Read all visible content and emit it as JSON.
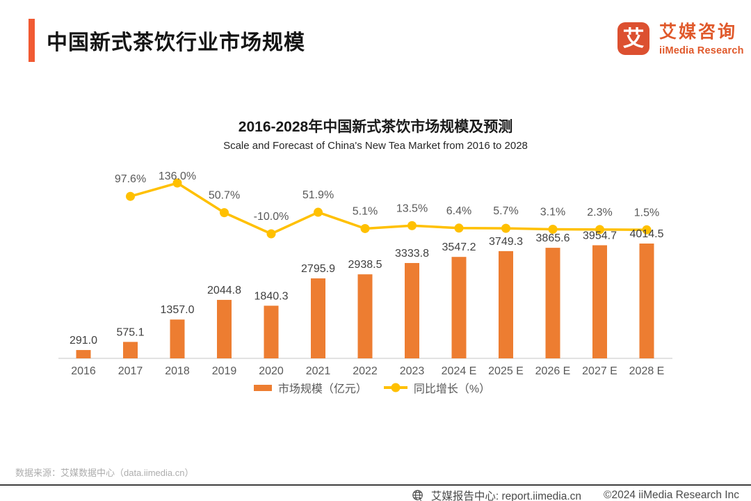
{
  "colors": {
    "brand_accent": "#F15A33",
    "bar_series": "#ED7D31",
    "line_series": "#FFC000"
  },
  "header": {
    "title": "中国新式茶饮行业市场规模",
    "logo": {
      "icon_char": "艾",
      "name_cn": "艾媒咨询",
      "name_en": "iiMedia Research"
    }
  },
  "chart": {
    "title": "2016-2028年中国新式茶饮市场规模及预测",
    "subtitle": "Scale and Forecast of China's New Tea Market from 2016 to 2028",
    "legend": {
      "bar_label": "市场规模（亿元）",
      "line_label": "同比增长（%）"
    }
  },
  "chart_data": {
    "type": "bar+line",
    "title": "2016-2028年中国新式茶饮市场规模及预测",
    "subtitle": "Scale and Forecast of China's New Tea Market from 2016 to 2028",
    "categories": [
      "2016",
      "2017",
      "2018",
      "2019",
      "2020",
      "2021",
      "2022",
      "2023",
      "2024 E",
      "2025 E",
      "2026 E",
      "2027 E",
      "2028 E"
    ],
    "series": [
      {
        "name": "市场规模（亿元）",
        "type": "bar",
        "color": "#ED7D31",
        "values": [
          291.0,
          575.1,
          1357.0,
          2044.8,
          1840.3,
          2795.9,
          2938.5,
          3333.8,
          3547.2,
          3749.3,
          3865.6,
          3954.7,
          4014.5
        ]
      },
      {
        "name": "同比增长（%）",
        "type": "line",
        "color": "#FFC000",
        "values": [
          null,
          97.6,
          136.0,
          50.7,
          -10.0,
          51.9,
          5.1,
          13.5,
          6.4,
          5.7,
          3.1,
          2.3,
          1.5
        ]
      }
    ],
    "value_label_decimals": 1,
    "bar_axis_range_hint": [
      0,
      4200
    ],
    "line_axis_range_hint": [
      -20,
      150
    ],
    "grid": false,
    "legend_position": "bottom",
    "axes_hidden": true
  },
  "footer": {
    "source": "数据来源：艾媒数据中心（data.iimedia.cn）",
    "report_center": "艾媒报告中心: report.iimedia.cn",
    "copyright": "©2024  iiMedia Research Inc"
  }
}
